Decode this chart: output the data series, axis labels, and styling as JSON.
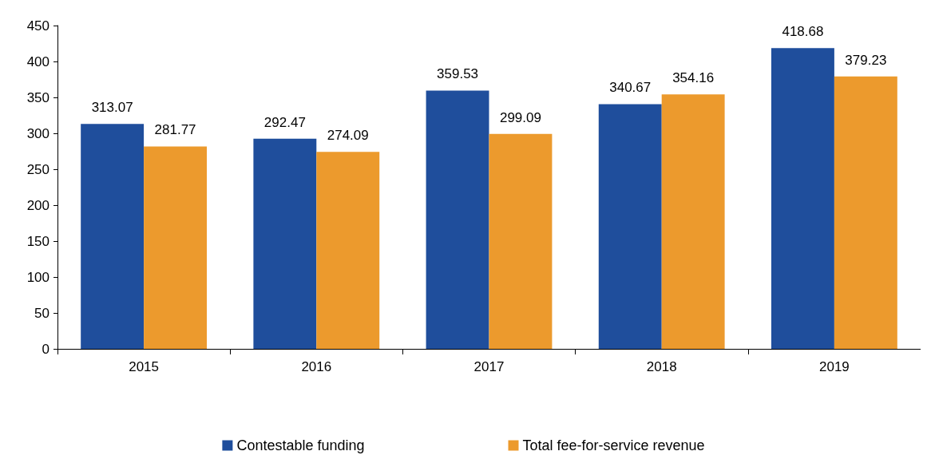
{
  "chart_data": {
    "type": "bar",
    "categories": [
      "2015",
      "2016",
      "2017",
      "2018",
      "2019"
    ],
    "series": [
      {
        "name": "Contestable funding",
        "color": "#1f4e9c",
        "values": [
          313.07,
          292.47,
          359.53,
          340.67,
          418.68
        ]
      },
      {
        "name": "Total fee-for-service revenue",
        "color": "#ec9a2d",
        "values": [
          281.77,
          274.09,
          299.09,
          354.16,
          379.23
        ]
      }
    ],
    "ylim": [
      0,
      450
    ],
    "yticks": [
      0,
      50,
      100,
      150,
      200,
      250,
      300,
      350,
      400,
      450
    ],
    "grid": false,
    "legend": "bottom",
    "data_labels": true
  }
}
